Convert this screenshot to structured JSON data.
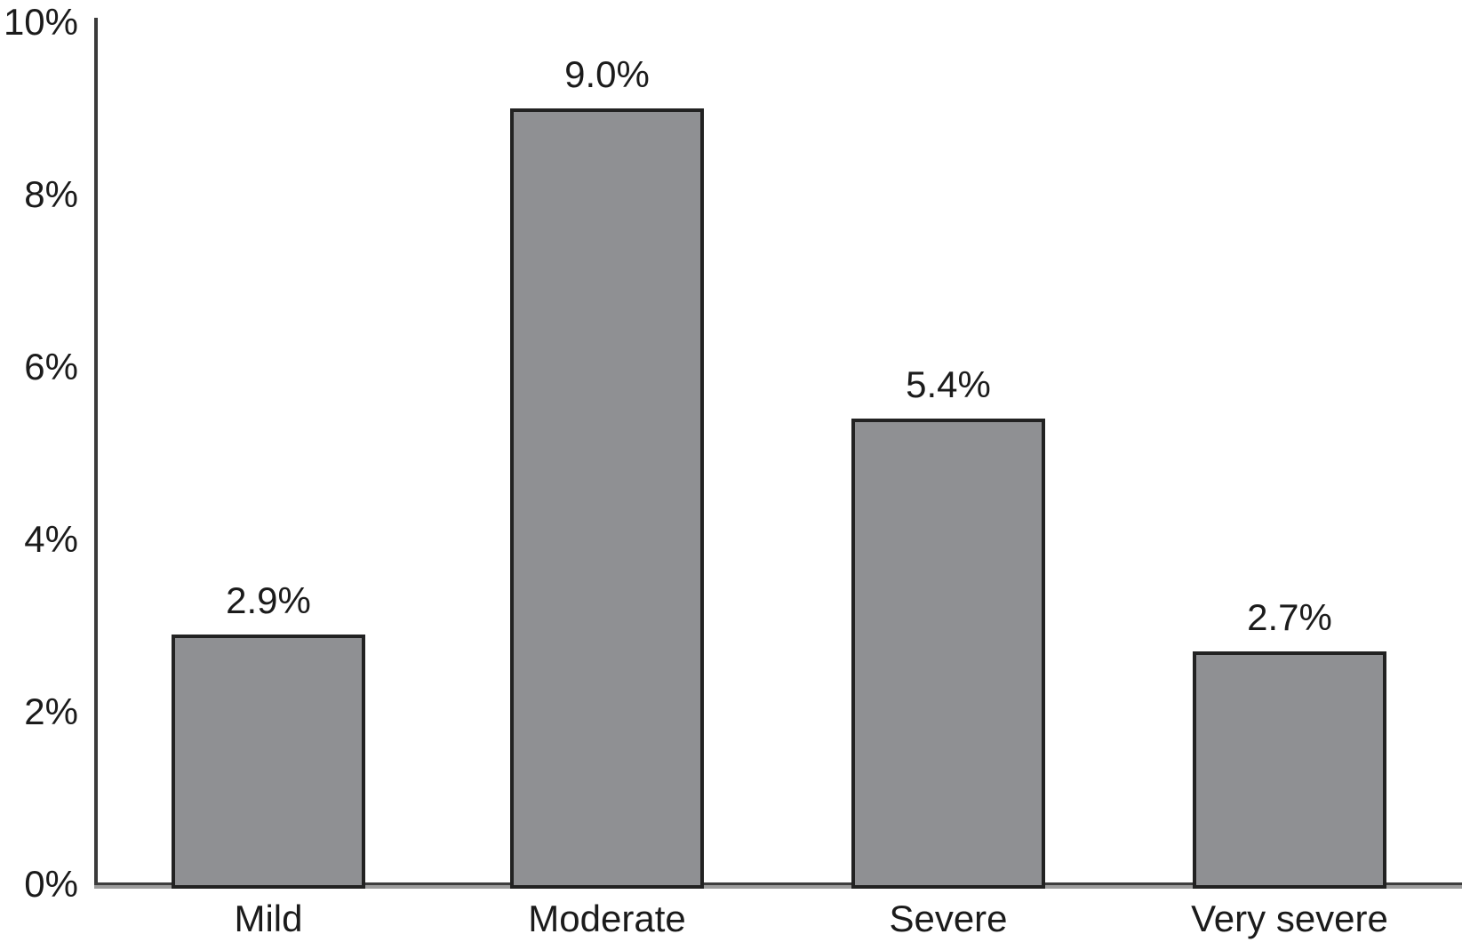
{
  "chart_data": {
    "type": "bar",
    "title": "",
    "xlabel": "",
    "ylabel": "",
    "categories": [
      "Mild",
      "Moderate",
      "Severe",
      "Very severe"
    ],
    "values": [
      2.9,
      9.0,
      5.4,
      2.7
    ],
    "value_labels": [
      "2.9%",
      "9.0%",
      "5.4%",
      "2.7%"
    ],
    "y_ticks": [
      {
        "label": "10%",
        "value": 10
      },
      {
        "label": "8%",
        "value": 8
      },
      {
        "label": "6%",
        "value": 6
      },
      {
        "label": "4%",
        "value": 4
      },
      {
        "label": "2%",
        "value": 2
      },
      {
        "label": "0%",
        "value": 0
      }
    ],
    "ylim": [
      0,
      10
    ],
    "grid": false,
    "legend_position": "none",
    "colors": {
      "bar_fill": "#8f9093",
      "bar_border": "#222222",
      "y_axis": "#3a3a3a",
      "x_axis_dark": "#3d3d3d",
      "x_axis_gray": "#9c9c9c",
      "text": "#1b1b1b",
      "background": "#ffffff"
    }
  }
}
